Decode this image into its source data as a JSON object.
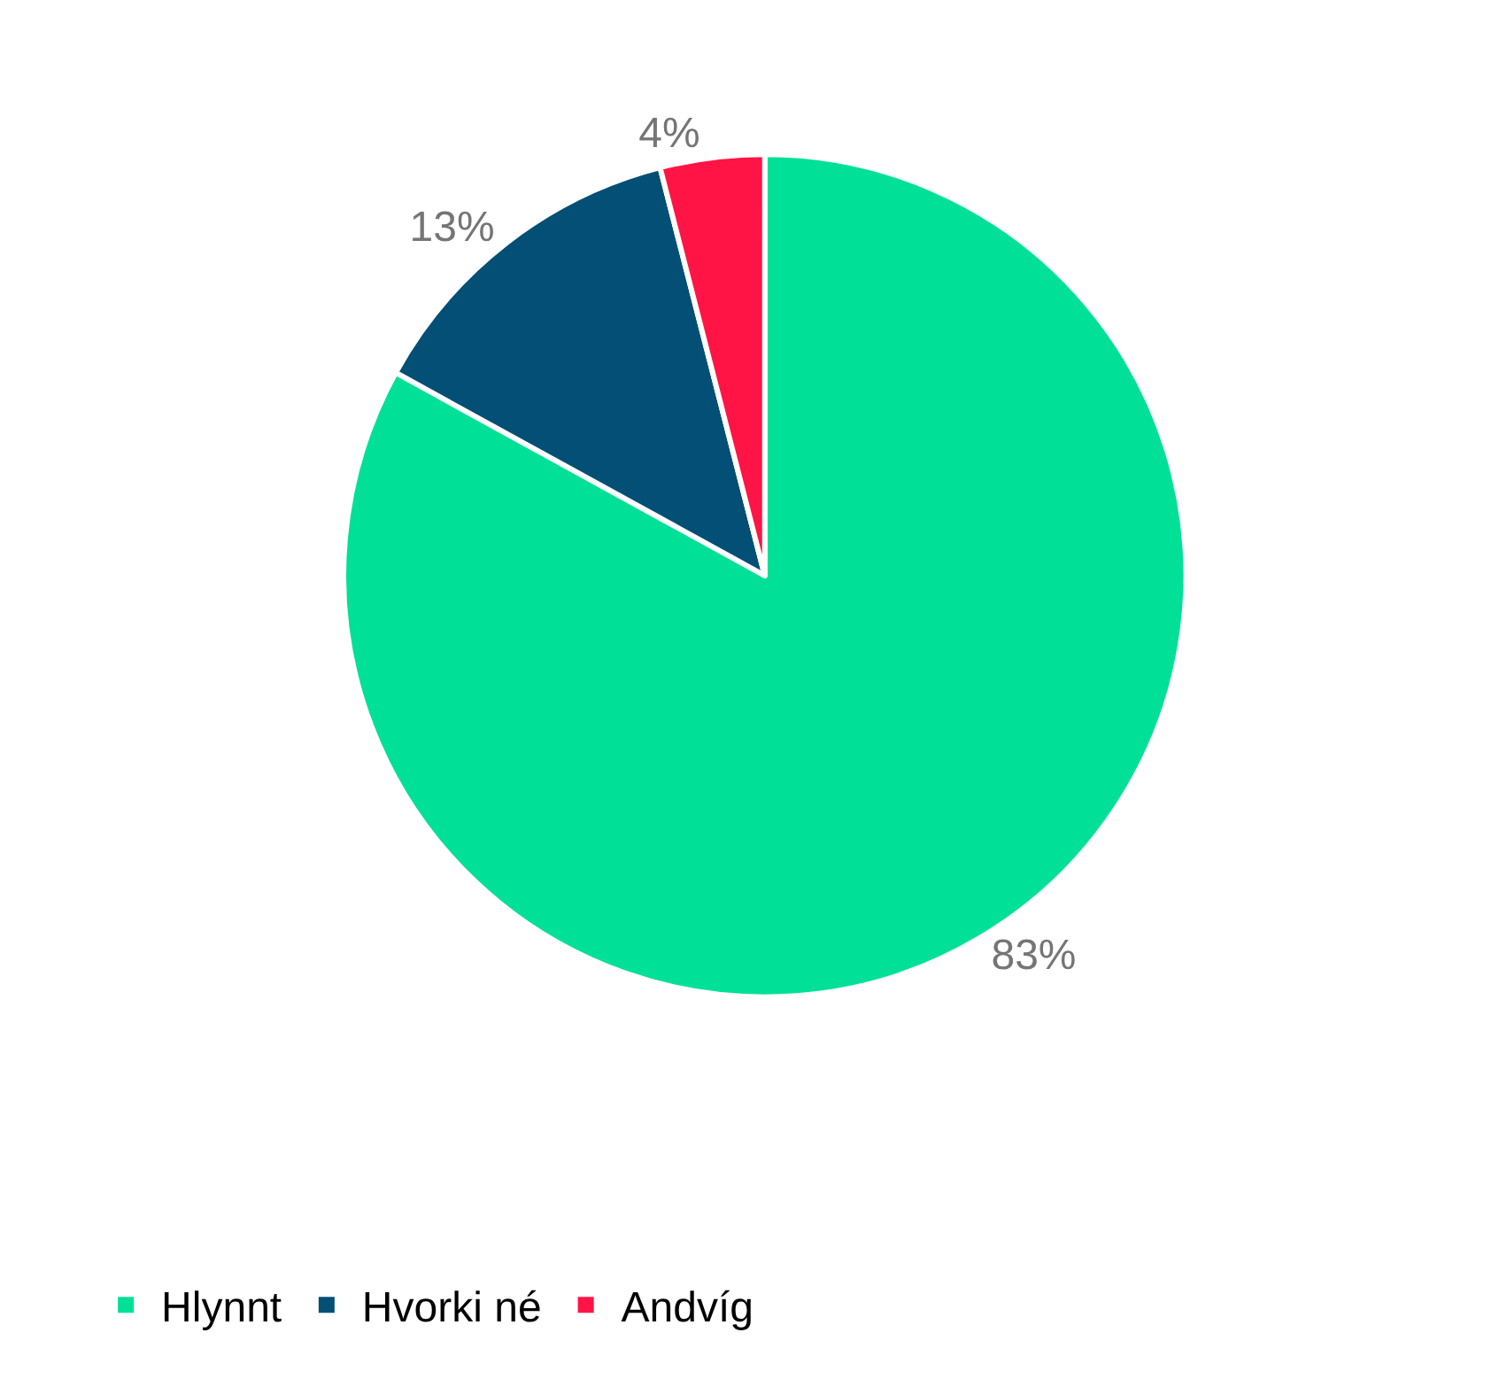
{
  "chart_data": {
    "type": "pie",
    "categories": [
      "Hlynnt",
      "Hvorki né",
      "Andvíg"
    ],
    "values": [
      83,
      13,
      4
    ],
    "colors": [
      "#00e096",
      "#034f75",
      "#ff1445"
    ],
    "value_labels": [
      "83%",
      "13%",
      "4%"
    ],
    "legend": "bottom left"
  }
}
